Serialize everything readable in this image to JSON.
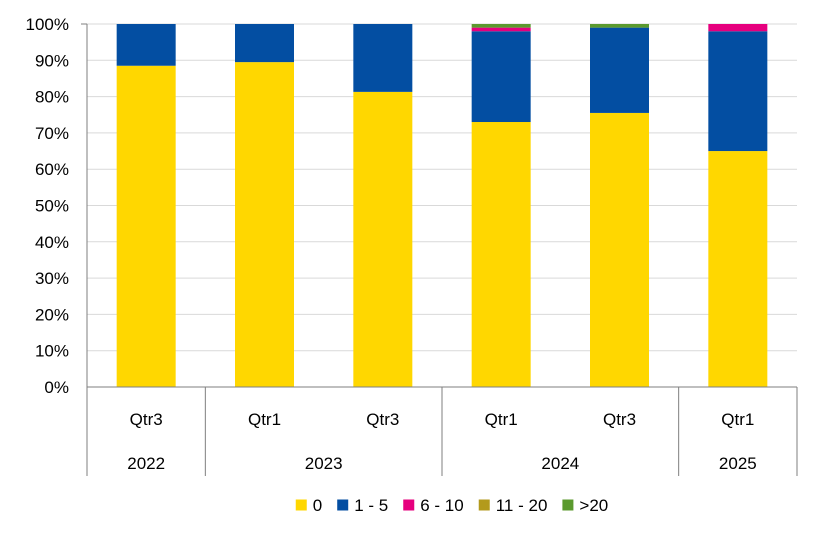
{
  "chart_data": {
    "type": "bar",
    "stacked": true,
    "normalized": true,
    "title": "",
    "xlabel": "",
    "ylabel": "",
    "ylim": [
      0,
      100
    ],
    "y_ticks": [
      "0%",
      "10%",
      "20%",
      "30%",
      "40%",
      "50%",
      "60%",
      "70%",
      "80%",
      "90%",
      "100%"
    ],
    "grid": "horizontal",
    "legend_position": "bottom",
    "categories": [
      {
        "quarter": "Qtr3",
        "year": "2022"
      },
      {
        "quarter": "Qtr1",
        "year": "2023"
      },
      {
        "quarter": "Qtr3",
        "year": "2023"
      },
      {
        "quarter": "Qtr1",
        "year": "2024"
      },
      {
        "quarter": "Qtr3",
        "year": "2024"
      },
      {
        "quarter": "Qtr1",
        "year": "2025"
      }
    ],
    "year_groups": [
      {
        "label": "2022",
        "span": 1
      },
      {
        "label": "2023",
        "span": 2
      },
      {
        "label": "2024",
        "span": 2
      },
      {
        "label": "2025",
        "span": 1
      }
    ],
    "series": [
      {
        "name": "0",
        "color": "#FFD700",
        "values": [
          88.5,
          89.5,
          81.3,
          73.0,
          75.5,
          65.0
        ]
      },
      {
        "name": "1 - 5",
        "color": "#034EA2",
        "values": [
          11.5,
          10.5,
          18.7,
          25.0,
          23.5,
          33.0
        ]
      },
      {
        "name": "6 - 10",
        "color": "#E6007E",
        "values": [
          0,
          0,
          0,
          1.0,
          0,
          2.0
        ]
      },
      {
        "name": "11 - 20",
        "color": "#B39A1C",
        "values": [
          0,
          0,
          0,
          0,
          0,
          0
        ]
      },
      {
        "name": ">20",
        "color": "#5B9A2E",
        "values": [
          0,
          0,
          0,
          1.0,
          1.0,
          0
        ]
      }
    ]
  }
}
